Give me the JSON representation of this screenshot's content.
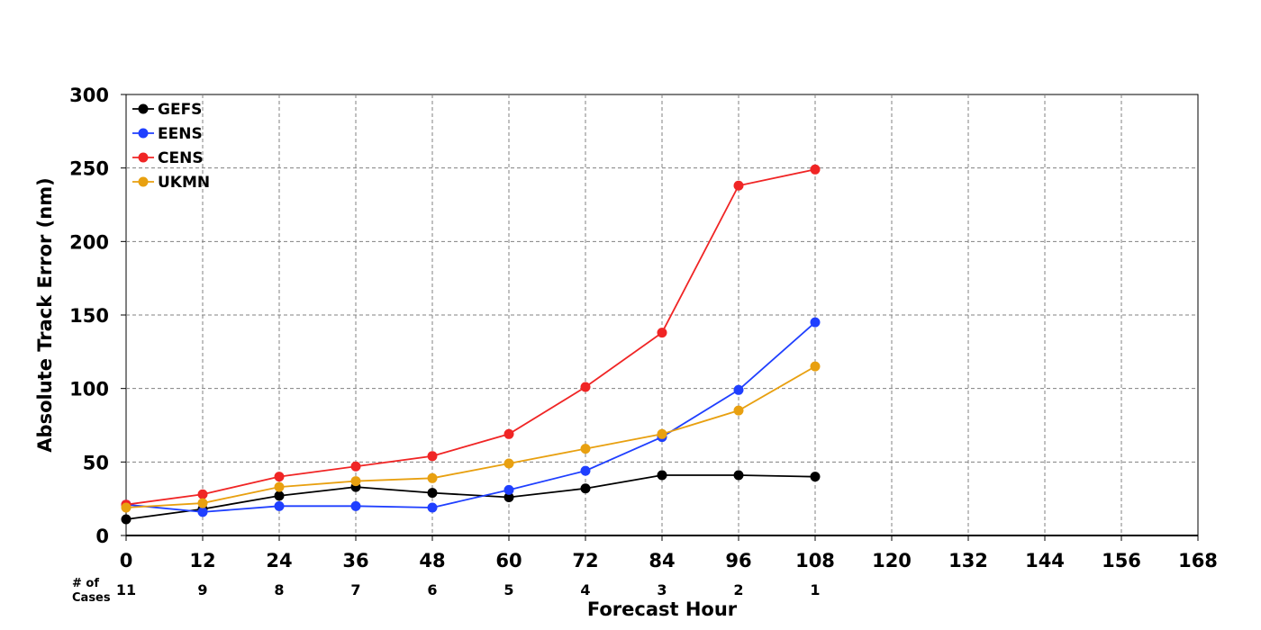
{
  "chart_data": {
    "type": "line",
    "xlabel": "Forecast Hour",
    "ylabel": "Absolute Track Error (nm)",
    "xlim": [
      0,
      168
    ],
    "ylim": [
      0,
      300
    ],
    "x_ticks": [
      0,
      12,
      24,
      36,
      48,
      60,
      72,
      84,
      96,
      108,
      120,
      132,
      144,
      156,
      168
    ],
    "y_ticks": [
      0,
      50,
      100,
      150,
      200,
      250,
      300
    ],
    "grid": true,
    "legend_position": "top-left",
    "x": [
      0,
      12,
      24,
      36,
      48,
      60,
      72,
      84,
      96,
      108
    ],
    "series": [
      {
        "name": "GEFS",
        "color": "#000000",
        "values": [
          11,
          18,
          27,
          33,
          29,
          26,
          32,
          41,
          41,
          40
        ]
      },
      {
        "name": "EENS",
        "color": "#1f3fff",
        "values": [
          21,
          16,
          20,
          20,
          19,
          31,
          44,
          67,
          99,
          145
        ]
      },
      {
        "name": "CENS",
        "color": "#f02525",
        "values": [
          21,
          28,
          40,
          47,
          54,
          69,
          101,
          138,
          238,
          249
        ]
      },
      {
        "name": "UKMN",
        "color": "#e8a010",
        "values": [
          19,
          22,
          33,
          37,
          39,
          49,
          59,
          69,
          85,
          115
        ]
      }
    ],
    "cases_header": [
      "# of",
      "Cases"
    ],
    "cases": [
      {
        "x": 0,
        "count": "11"
      },
      {
        "x": 12,
        "count": "9"
      },
      {
        "x": 24,
        "count": "8"
      },
      {
        "x": 36,
        "count": "7"
      },
      {
        "x": 48,
        "count": "6"
      },
      {
        "x": 60,
        "count": "5"
      },
      {
        "x": 72,
        "count": "4"
      },
      {
        "x": 84,
        "count": "3"
      },
      {
        "x": 96,
        "count": "2"
      },
      {
        "x": 108,
        "count": "1"
      }
    ]
  }
}
